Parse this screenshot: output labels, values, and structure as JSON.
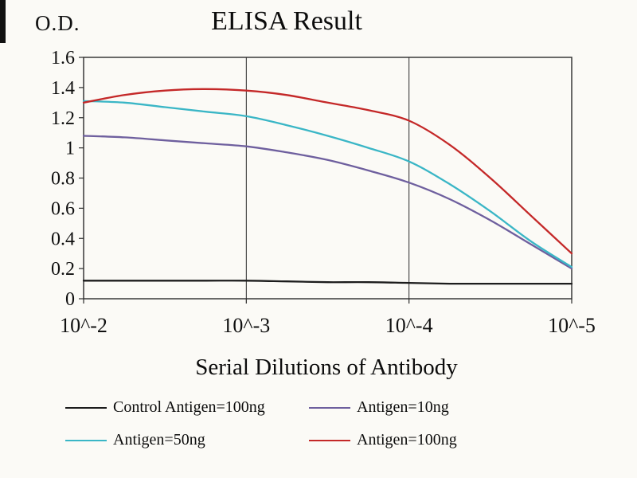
{
  "chart_data": {
    "type": "line",
    "title": "ELISA Result",
    "ylabel": "O.D.",
    "xlabel": "Serial Dilutions of Antibody",
    "ylim": [
      0,
      1.6
    ],
    "y_ticks": [
      0,
      0.2,
      0.4,
      0.6,
      0.8,
      1,
      1.2,
      1.4,
      1.6
    ],
    "y_tick_labels": [
      "0",
      "0.2",
      "0.4",
      "0.6",
      "0.8",
      "1",
      "1.2",
      "1.4",
      "1.6"
    ],
    "x_range": [
      2,
      5
    ],
    "x_ticks": [
      2,
      3,
      4,
      5
    ],
    "x_tick_labels": [
      "10^-2",
      "10^-3",
      "10^-4",
      "10^-5"
    ],
    "grid": "vertical-gridlines-at-x-ticks",
    "legend_position": "bottom",
    "sample_x": [
      2,
      2.25,
      2.5,
      2.75,
      3,
      3.25,
      3.5,
      3.75,
      4,
      4.25,
      4.5,
      4.75,
      5
    ],
    "series": [
      {
        "name": "Control Antigen=100ng",
        "color": "#1c1c1c",
        "values": [
          0.12,
          0.12,
          0.12,
          0.12,
          0.12,
          0.115,
          0.11,
          0.11,
          0.105,
          0.1,
          0.1,
          0.1,
          0.1
        ]
      },
      {
        "name": "Antigen=10ng",
        "color": "#6e5f9e",
        "values": [
          1.08,
          1.07,
          1.05,
          1.03,
          1.01,
          0.97,
          0.92,
          0.85,
          0.77,
          0.66,
          0.52,
          0.36,
          0.2
        ]
      },
      {
        "name": "Antigen=50ng",
        "color": "#3ab6c6",
        "values": [
          1.31,
          1.3,
          1.27,
          1.24,
          1.21,
          1.15,
          1.08,
          1.0,
          0.91,
          0.76,
          0.58,
          0.38,
          0.21
        ]
      },
      {
        "name": "Antigen=100ng",
        "color": "#c42828",
        "values": [
          1.3,
          1.35,
          1.38,
          1.39,
          1.38,
          1.35,
          1.3,
          1.25,
          1.18,
          1.02,
          0.8,
          0.55,
          0.3
        ]
      }
    ]
  }
}
